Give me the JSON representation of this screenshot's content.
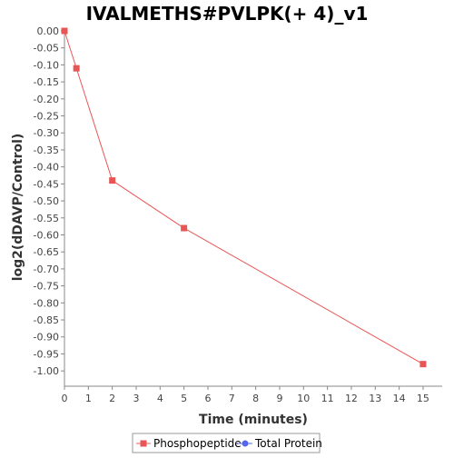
{
  "chart_data": {
    "type": "line",
    "title": "IVALMETHS#PVLPK(+ 4)_v1",
    "xlabel": "Time (minutes)",
    "ylabel": "log2(dDAVP/Control)",
    "xlim": [
      0,
      15.8
    ],
    "ylim": [
      -1.045,
      0.0
    ],
    "x_ticks": [
      0,
      1,
      2,
      3,
      4,
      5,
      6,
      7,
      8,
      9,
      10,
      11,
      12,
      13,
      14,
      15
    ],
    "x_tick_labels": [
      "0",
      "1",
      "2",
      "3",
      "4",
      "5",
      "6",
      "7",
      "8",
      "9",
      "10",
      "11",
      "12",
      "13",
      "14",
      "15"
    ],
    "y_ticks": [
      0,
      -0.05,
      -0.1,
      -0.15,
      -0.2,
      -0.25,
      -0.3,
      -0.35,
      -0.4,
      -0.45,
      -0.5,
      -0.55,
      -0.6,
      -0.65,
      -0.7,
      -0.75,
      -0.8,
      -0.85,
      -0.9,
      -0.95,
      -1.0
    ],
    "y_tick_labels": [
      "0.00",
      "-0.05",
      "-0.10",
      "-0.15",
      "-0.20",
      "-0.25",
      "-0.30",
      "-0.35",
      "-0.40",
      "-0.45",
      "-0.50",
      "-0.55",
      "-0.60",
      "-0.65",
      "-0.70",
      "-0.75",
      "-0.80",
      "-0.85",
      "-0.90",
      "-0.95",
      "-1.00"
    ],
    "grid": false,
    "legend_position": "bottom",
    "series": [
      {
        "name": "Phosphopeptide",
        "color": "#e85555",
        "marker": "square",
        "x": [
          0,
          0.5,
          2,
          5,
          15
        ],
        "y": [
          0.0,
          -0.11,
          -0.44,
          -0.58,
          -0.98
        ]
      },
      {
        "name": "Total Protein",
        "color": "#5566ee",
        "marker": "circle",
        "x": [],
        "y": []
      }
    ]
  }
}
